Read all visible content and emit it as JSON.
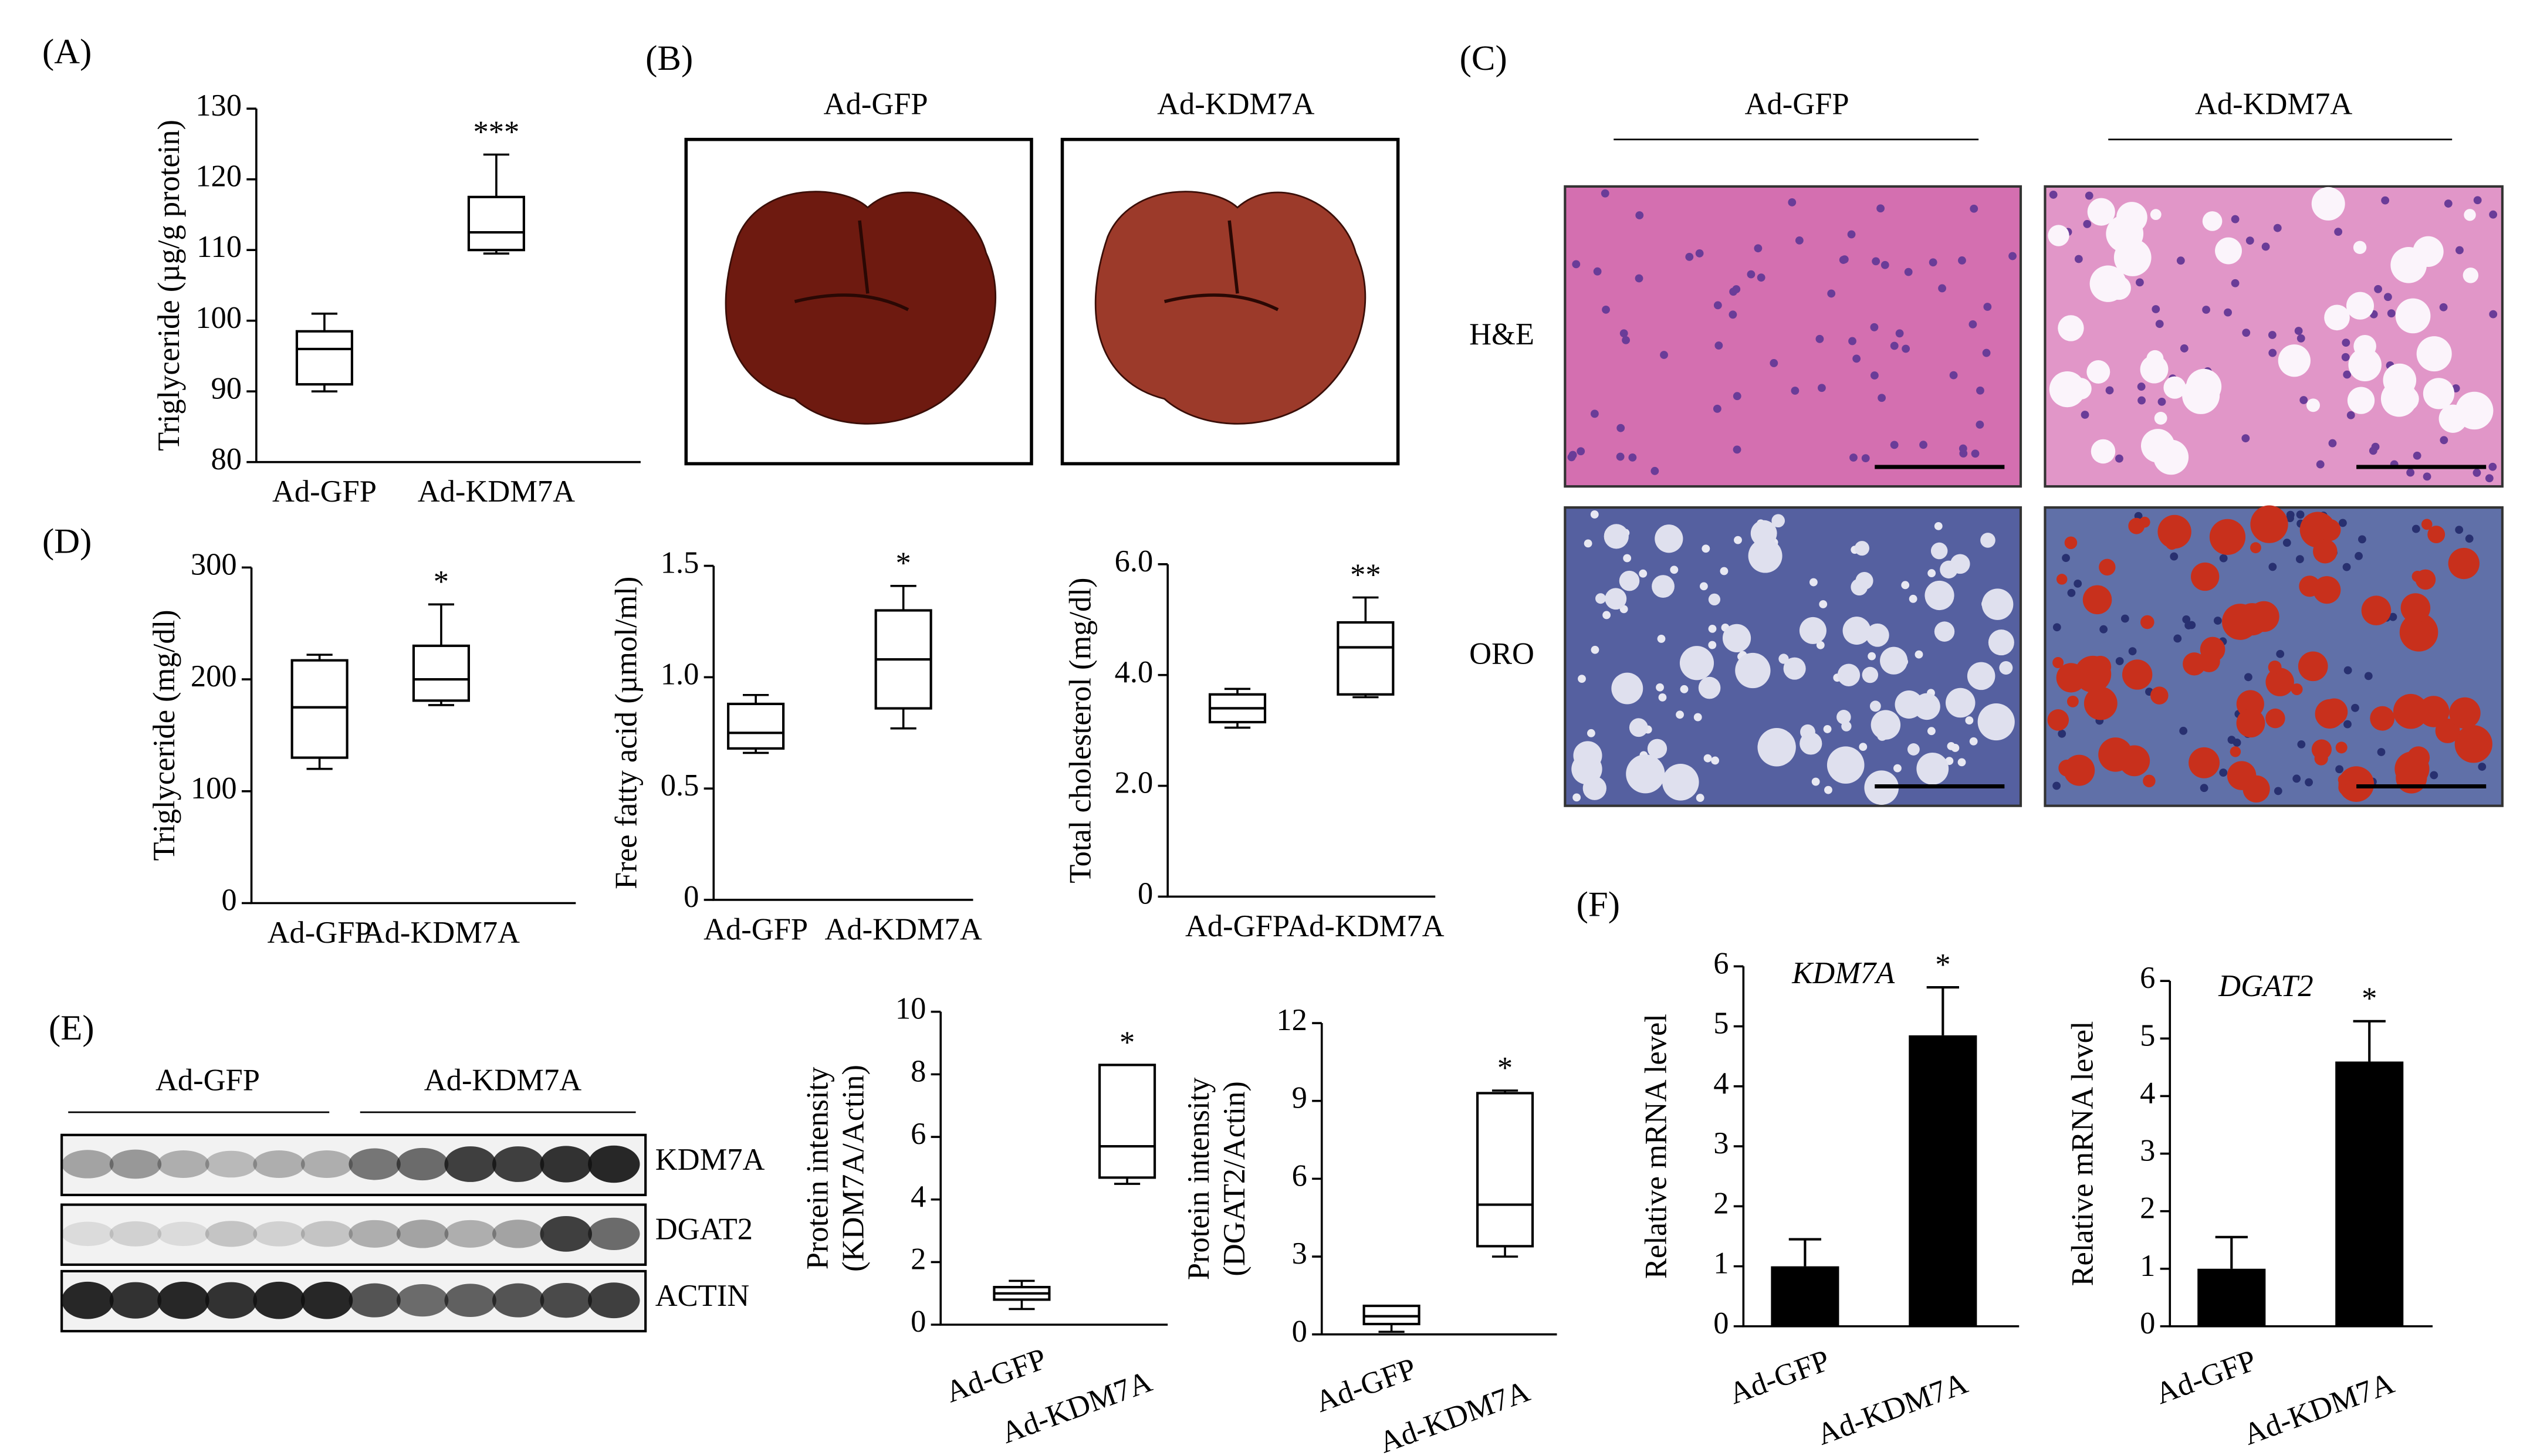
{
  "panel_labels": [
    "(A)",
    "(B)",
    "(C)",
    "(D)",
    "(E)",
    "(F)"
  ],
  "photos": {
    "liver_groups": [
      "Ad-GFP",
      "Ad-KDM7A"
    ],
    "histology_groups": [
      "Ad-GFP",
      "Ad-KDM7A"
    ],
    "stains": [
      "H&E",
      "ORO"
    ]
  },
  "blot": {
    "groups": [
      "Ad-GFP",
      "Ad-KDM7A"
    ],
    "proteins": [
      "KDM7A",
      "DGAT2",
      "ACTIN"
    ]
  },
  "chart_data": [
    {
      "type": "box",
      "ylabel": [
        "Triglyceride (µg/g protein)"
      ],
      "categories": [
        "Ad-GFP",
        "Ad-KDM7A"
      ],
      "whisker_low": [
        90,
        109.5
      ],
      "q1": [
        91,
        110
      ],
      "median": [
        96,
        112.5
      ],
      "q3": [
        98.5,
        117.5
      ],
      "whisker_high": [
        101,
        123.5
      ],
      "ylim": [
        80,
        130
      ],
      "yticks": [
        80,
        90,
        100,
        110,
        120,
        130
      ],
      "annotation": "***"
    },
    {
      "type": "box",
      "ylabel": [
        "Triglyceride (mg/dl)"
      ],
      "categories": [
        "Ad-GFP",
        "Ad-KDM7A"
      ],
      "whisker_low": [
        120,
        177
      ],
      "q1": [
        130,
        181
      ],
      "median": [
        175,
        200
      ],
      "q3": [
        217,
        230
      ],
      "whisker_high": [
        222,
        267
      ],
      "ylim": [
        0,
        300
      ],
      "yticks": [
        0,
        100,
        200,
        300
      ],
      "annotation": "*"
    },
    {
      "type": "box",
      "ylabel": [
        "Free fatty acid (µmol/ml)"
      ],
      "categories": [
        "Ad-GFP",
        "Ad-KDM7A"
      ],
      "whisker_low": [
        0.66,
        0.77
      ],
      "q1": [
        0.68,
        0.86
      ],
      "median": [
        0.75,
        1.08
      ],
      "q3": [
        0.88,
        1.3
      ],
      "whisker_high": [
        0.92,
        1.41
      ],
      "ylim": [
        0,
        1.5
      ],
      "yticks": [
        0,
        0.5,
        {
          "value": 1,
          "label": "1.0"
        },
        1.5
      ],
      "annotation": "*"
    },
    {
      "type": "box",
      "ylabel": [
        "Total cholesterol (mg/dl)"
      ],
      "categories": [
        "Ad-GFP",
        "Ad-KDM7A"
      ],
      "whisker_low": [
        3.05,
        3.6
      ],
      "q1": [
        3.15,
        3.65
      ],
      "median": [
        3.4,
        4.5
      ],
      "q3": [
        3.65,
        4.95
      ],
      "whisker_high": [
        3.75,
        5.4
      ],
      "ylim": [
        0,
        6
      ],
      "yticks": [
        0,
        {
          "value": 2,
          "label": "2.0"
        },
        {
          "value": 4,
          "label": "4.0"
        },
        {
          "value": 6,
          "label": "6.0"
        }
      ],
      "annotation": "**"
    },
    {
      "type": "box",
      "ylabel": [
        "Protein intensity",
        "(KDM7A/Actin)"
      ],
      "categories": [
        "Ad-GFP",
        "Ad-KDM7A"
      ],
      "whisker_low": [
        0.5,
        4.5
      ],
      "q1": [
        0.8,
        4.7
      ],
      "median": [
        1.0,
        5.7
      ],
      "q3": [
        1.2,
        8.3
      ],
      "whisker_high": [
        1.4,
        8.3
      ],
      "ylim": [
        0,
        10
      ],
      "yticks": [
        0,
        2,
        4,
        6,
        8,
        10
      ],
      "annotation": "*"
    },
    {
      "type": "box",
      "ylabel": [
        "Protein intensity",
        "(DGAT2/Actin)"
      ],
      "categories": [
        "Ad-GFP",
        "Ad-KDM7A"
      ],
      "whisker_low": [
        0.1,
        3.0
      ],
      "q1": [
        0.4,
        3.4
      ],
      "median": [
        0.7,
        5.0
      ],
      "q3": [
        1.1,
        9.3
      ],
      "whisker_high": [
        1.1,
        9.4
      ],
      "ylim": [
        0,
        12
      ],
      "yticks": [
        0,
        3,
        6,
        9,
        12
      ],
      "annotation": "*"
    },
    {
      "type": "bar",
      "title": "KDM7A",
      "ylabel": [
        "Relative mRNA level"
      ],
      "categories": [
        "Ad-GFP",
        "Ad-KDM7A"
      ],
      "values": [
        1.0,
        4.85
      ],
      "errors": [
        0.45,
        0.8
      ],
      "color": "#000000",
      "ylim": [
        0,
        6
      ],
      "yticks": [
        0,
        1,
        2,
        3,
        4,
        5,
        6
      ],
      "annotation": "*"
    },
    {
      "type": "bar",
      "title": "DGAT2",
      "ylabel": [
        "Relative mRNA level"
      ],
      "categories": [
        "Ad-GFP",
        "Ad-KDM7A"
      ],
      "values": [
        1.0,
        4.6
      ],
      "errors": [
        0.55,
        0.7
      ],
      "color": "#000000",
      "ylim": [
        0,
        6
      ],
      "yticks": [
        0,
        1,
        2,
        3,
        4,
        5,
        6
      ],
      "annotation": "*"
    }
  ]
}
